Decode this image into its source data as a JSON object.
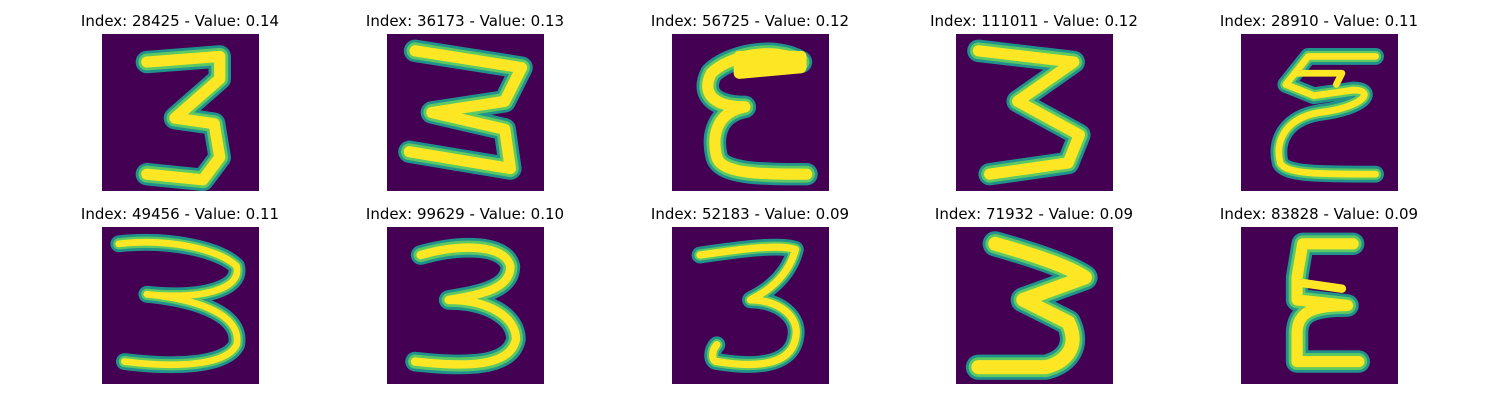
{
  "colors": {
    "background": "#440154",
    "stroke_outer": "#21918c",
    "stroke_mid": "#5ec962",
    "stroke_core": "#fde725"
  },
  "panels": [
    {
      "title": "Index: 28425 - Value: 0.14",
      "image": "handwritten digit 3"
    },
    {
      "title": "Index: 36173 - Value: 0.13",
      "image": "handwritten digit 3"
    },
    {
      "title": "Index: 56725 - Value: 0.12",
      "image": "handwritten digit 3"
    },
    {
      "title": "Index: 111011 - Value: 0.12",
      "image": "handwritten digit 3"
    },
    {
      "title": "Index: 28910 - Value: 0.11",
      "image": "handwritten digit 3"
    },
    {
      "title": "Index: 49456 - Value: 0.11",
      "image": "handwritten digit 3"
    },
    {
      "title": "Index: 99629 - Value: 0.10",
      "image": "handwritten digit 3"
    },
    {
      "title": "Index: 52183 - Value: 0.09",
      "image": "handwritten digit 3"
    },
    {
      "title": "Index: 71932 - Value: 0.09",
      "image": "handwritten digit 3"
    },
    {
      "title": "Index: 83828 - Value: 0.09",
      "image": "handwritten digit 3"
    }
  ]
}
